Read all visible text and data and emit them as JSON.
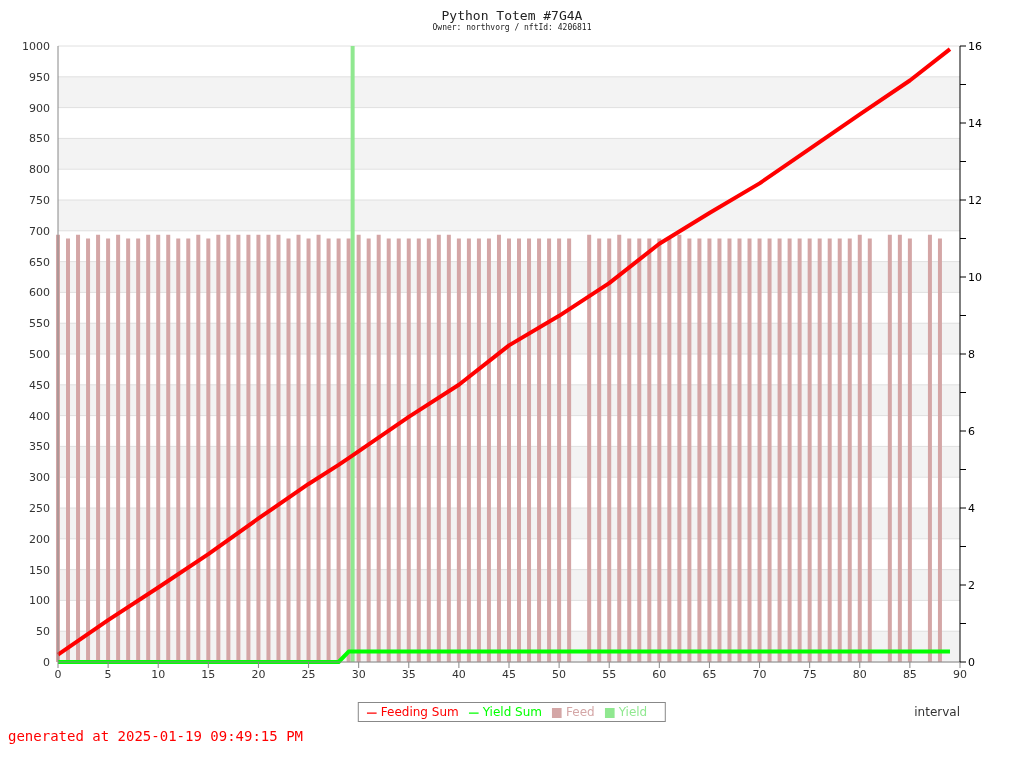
{
  "chart_data": {
    "type": "bar",
    "title": "Python Totem #7G4A",
    "subtitle": "Owner: northvorg / nftId: 4206811",
    "xlabel": "interval",
    "annotations": [
      "generated at 2025-01-19 09:49:15 PM"
    ],
    "x": [
      0,
      1,
      2,
      3,
      4,
      5,
      6,
      7,
      8,
      9,
      10,
      11,
      12,
      13,
      14,
      15,
      16,
      17,
      18,
      19,
      20,
      21,
      22,
      23,
      24,
      25,
      26,
      27,
      28,
      29,
      30,
      31,
      32,
      33,
      34,
      35,
      36,
      37,
      38,
      39,
      40,
      41,
      42,
      43,
      44,
      45,
      46,
      47,
      48,
      49,
      50,
      51,
      52,
      53,
      54,
      55,
      56,
      57,
      58,
      59,
      60,
      61,
      62,
      63,
      64,
      65,
      66,
      67,
      68,
      69,
      70,
      71,
      72,
      73,
      74,
      75,
      76,
      77,
      78,
      79,
      80,
      81,
      82,
      83,
      84,
      85,
      86,
      87,
      88
    ],
    "series": [
      {
        "name": "Feeding Sum",
        "type": "line",
        "color": "#ff0000",
        "x": [
          0,
          5,
          10,
          15,
          20,
          25,
          28,
          29,
          35,
          40,
          45,
          50,
          55,
          60,
          65,
          70,
          75,
          80,
          85,
          89
        ],
        "values": [
          12,
          68,
          121,
          175,
          233,
          289,
          320,
          331,
          398,
          450,
          514,
          562,
          615,
          679,
          729,
          777,
          833,
          889,
          944,
          995
        ]
      },
      {
        "name": "Yield Sum",
        "type": "line",
        "color": "#00ff00",
        "x": [
          0,
          28,
          29,
          89
        ],
        "values": [
          0,
          0,
          17,
          17
        ]
      },
      {
        "name": "Feed",
        "axis": "y2",
        "color": "#d4a6a6",
        "values": [
          11.1,
          11,
          11.1,
          11,
          11.1,
          11,
          11.1,
          11,
          11,
          11.1,
          11.1,
          11.1,
          11,
          11,
          11.1,
          11,
          11.1,
          11.1,
          11.1,
          11.1,
          11.1,
          11.1,
          11.1,
          11,
          11.1,
          11,
          11.1,
          11,
          11,
          11,
          11.1,
          11,
          11.1,
          11,
          11,
          11,
          11,
          11,
          11.1,
          11.1,
          11,
          11,
          11,
          11,
          11.1,
          11,
          11,
          11,
          11,
          11,
          11,
          11,
          null,
          11.1,
          11,
          11,
          11.1,
          11,
          11,
          11,
          11,
          11,
          11.1,
          11,
          11,
          11,
          11,
          11,
          11,
          11,
          11,
          11,
          11,
          11,
          11,
          11,
          11,
          11,
          11,
          11,
          11.1,
          11,
          null,
          11.1,
          11.1,
          11,
          null,
          11.1,
          11
        ]
      },
      {
        "name": "Yield",
        "axis": "y2",
        "color": "#90e890",
        "values": [
          null,
          null,
          null,
          null,
          null,
          null,
          null,
          null,
          null,
          null,
          null,
          null,
          null,
          null,
          null,
          null,
          null,
          null,
          null,
          null,
          null,
          null,
          null,
          null,
          null,
          null,
          null,
          null,
          null,
          16,
          null,
          null,
          null,
          null,
          null,
          null,
          null,
          null,
          null,
          null,
          null,
          null,
          null,
          null,
          null,
          null,
          null,
          null,
          null,
          null,
          null,
          null,
          null,
          null,
          null,
          null,
          null,
          null,
          null,
          null,
          null,
          null,
          null,
          null,
          null,
          null,
          null,
          null,
          null,
          null,
          null,
          null,
          null,
          null,
          null,
          null,
          null,
          null,
          null,
          null,
          null,
          null,
          null,
          null,
          null,
          null,
          null,
          null,
          null
        ]
      }
    ],
    "xlim": [
      0,
      90
    ],
    "xticks": [
      0,
      5,
      10,
      15,
      20,
      25,
      30,
      35,
      40,
      45,
      50,
      55,
      60,
      65,
      70,
      75,
      80,
      85,
      90
    ],
    "ylim": [
      0,
      1000
    ],
    "yticks": [
      0,
      50,
      100,
      150,
      200,
      250,
      300,
      350,
      400,
      450,
      500,
      550,
      600,
      650,
      700,
      750,
      800,
      850,
      900,
      950,
      1000
    ],
    "y2lim": [
      0,
      16
    ],
    "y2ticks": [
      0,
      {
        "value": 1,
        "label": null
      },
      2,
      {
        "value": 3,
        "label": null
      },
      4,
      {
        "value": 5,
        "label": null
      },
      6,
      {
        "value": 7,
        "label": null
      },
      8,
      {
        "value": 9,
        "label": null
      },
      10,
      {
        "value": 11,
        "label": null
      },
      12,
      {
        "value": 13,
        "label": null
      },
      14,
      {
        "value": 15,
        "label": null
      },
      16
    ],
    "grid": "y",
    "legend": "bottom"
  }
}
